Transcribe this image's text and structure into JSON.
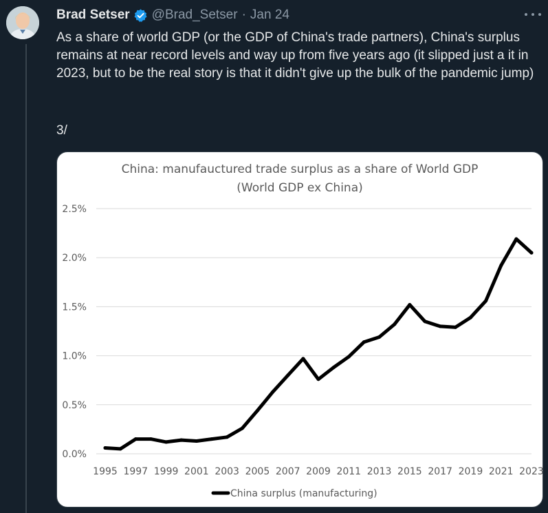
{
  "tweet": {
    "author_name": "Brad Setser",
    "handle": "@Brad_Setser",
    "separator": "·",
    "date": "Jan 24",
    "text": "As a share of world GDP (or the GDP of China's trade partners), China's surplus remains at near record levels and way up from five years ago (it slipped just a it in 2023, but to be the real story is that it didn't give up the bulk of the pandemic jump)",
    "thread_marker": "3/"
  },
  "icons": {
    "verified": "verified-badge-icon",
    "more": "more-options-icon",
    "avatar": "avatar"
  },
  "colors": {
    "background": "#15202b",
    "verified": "#1d9bf0",
    "muted_text": "#8b98a5",
    "line": "#000000"
  },
  "chart_data": {
    "type": "line",
    "title": "China: manufauctured trade surplus as a share of World GDP",
    "subtitle": "(World GDP ex China)",
    "ylim": [
      0,
      2.5
    ],
    "yticks": [
      "0.0%",
      "0.5%",
      "1.0%",
      "1.5%",
      "2.0%",
      "2.5%"
    ],
    "ytick_values": [
      0,
      0.5,
      1.0,
      1.5,
      2.0,
      2.5
    ],
    "xticks": [
      "1995",
      "1997",
      "1999",
      "2001",
      "2003",
      "2005",
      "2007",
      "2009",
      "2011",
      "2013",
      "2015",
      "2017",
      "2019",
      "2021",
      "2023"
    ],
    "grid": true,
    "legend": "bottom",
    "series": [
      {
        "name": "China surplus (manufacturing)",
        "x": [
          1995,
          1996,
          1997,
          1998,
          1999,
          2000,
          2001,
          2002,
          2003,
          2004,
          2005,
          2006,
          2007,
          2008,
          2009,
          2010,
          2011,
          2012,
          2013,
          2014,
          2015,
          2016,
          2017,
          2018,
          2019,
          2020,
          2021,
          2022,
          2023
        ],
        "values": [
          0.06,
          0.05,
          0.15,
          0.15,
          0.12,
          0.14,
          0.13,
          0.15,
          0.17,
          0.26,
          0.44,
          0.63,
          0.8,
          0.97,
          0.76,
          0.88,
          0.99,
          1.14,
          1.19,
          1.32,
          1.52,
          1.35,
          1.3,
          1.29,
          1.39,
          1.56,
          1.92,
          2.19,
          2.05
        ]
      }
    ]
  }
}
